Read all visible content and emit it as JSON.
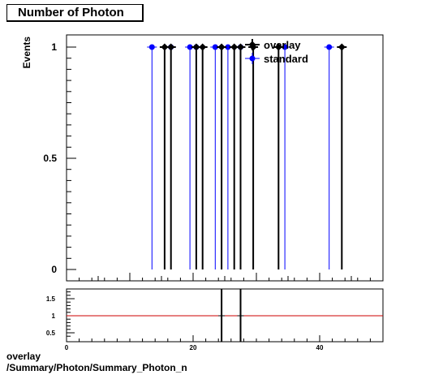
{
  "chart_data": [
    {
      "type": "histogram",
      "title": "Number of Photon",
      "ylabel": "Events",
      "xlim": [
        0,
        50
      ],
      "ylim": [
        0,
        1.05
      ],
      "y_ticks": [
        "0",
        "0.5",
        "1"
      ],
      "legend": {
        "position": "top-right",
        "entries": [
          "overlay",
          "standard"
        ]
      },
      "series": [
        {
          "name": "overlay",
          "color": "#000000",
          "x": [
            15.5,
            16.5,
            20.5,
            21.5,
            24.5,
            26.5,
            27.5,
            29.5,
            33.5,
            43.5
          ],
          "values": [
            1,
            1,
            1,
            1,
            1,
            1,
            1,
            1,
            1,
            1
          ]
        },
        {
          "name": "standard",
          "color": "#0000ff",
          "x": [
            13.5,
            16.5,
            19.5,
            20.5,
            23.5,
            25.5,
            27.5,
            34.5,
            41.5
          ],
          "values": [
            1,
            1,
            1,
            1,
            1,
            1,
            1,
            1,
            1
          ]
        }
      ]
    },
    {
      "type": "ratio",
      "xlim": [
        0,
        50
      ],
      "ylim": [
        0.3,
        1.8
      ],
      "x_ticks": [
        "0",
        "20",
        "40"
      ],
      "y_ticks": [
        "0.5",
        "1",
        "1.5"
      ],
      "reference_line": {
        "y": 1,
        "color": "#cc0000"
      },
      "spikes_x": [
        24.5,
        27.5
      ]
    }
  ],
  "footer": {
    "line1": "overlay",
    "line2": "/Summary/Photon/Summary_Photon_n"
  }
}
